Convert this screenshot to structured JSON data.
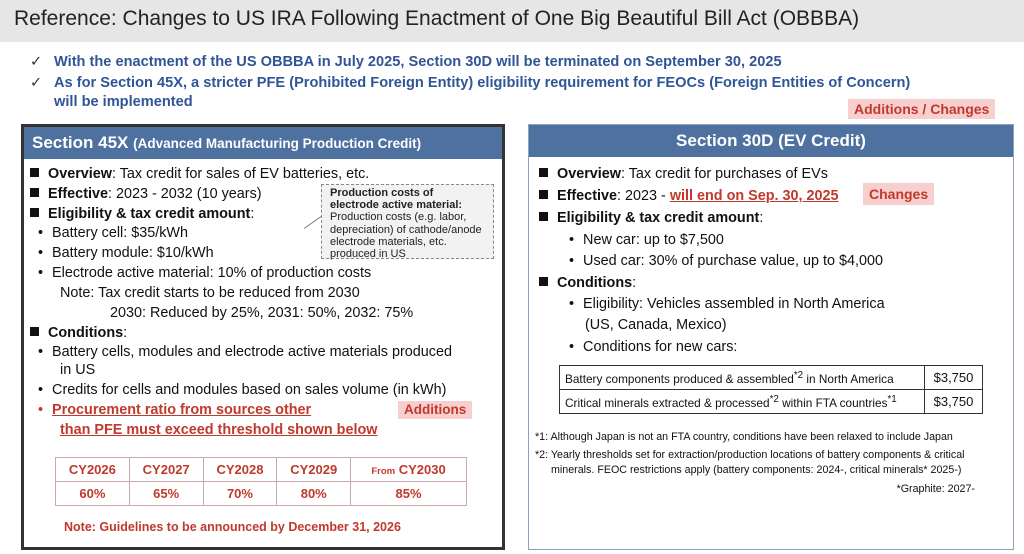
{
  "title": "Reference: Changes to US IRA Following Enactment of One Big Beautiful Bill Act (OBBBA)",
  "check_icon": "✓",
  "bullets": [
    "With the enactment of the US OBBBA in July 2025, Section 30D will be terminated on September 30, 2025",
    "As for Section 45X, a stricter PFE (Prohibited Foreign Entity) eligibility requirement for FEOCs (Foreign Entities of Concern)",
    "will be implemented"
  ],
  "additions_changes_tag": "Additions / Changes",
  "accent_colors": {
    "header": "#4f71a0",
    "bullet_text": "#2f5597",
    "red": "#c0392b",
    "tag_bg": "#f8cfcf"
  },
  "left": {
    "heading_main": "Section 45X",
    "heading_sub": "(Advanced Manufacturing Production Credit)",
    "overview_label": "Overview",
    "overview_text": ": Tax credit for sales of EV batteries, etc.",
    "effective_label": "Effective",
    "effective_text": ": 2023 - 2032 (10 years)",
    "eligibility_label": "Eligibility & tax credit amount",
    "eligibility_colon": ":",
    "items": [
      "Battery cell: $35/kWh",
      "Battery module: $10/kWh",
      "Electrode active material: 10% of production costs"
    ],
    "note1": "Note: Tax credit starts to be reduced from 2030",
    "note2": "2030: Reduced by 25%, 2031: 50%, 2032: 75%",
    "callout_title": "Production costs of electrode active material:",
    "callout_body": "Production costs (e.g. labor, depreciation) of cathode/anode electrode materials, etc. produced in US",
    "conditions_label": "Conditions",
    "conditions_colon": ":",
    "cond1a": "Battery cells, modules and electrode active materials produced",
    "cond1b": "in US",
    "cond2": "Credits for cells and modules based on sales volume (in kWh)",
    "cond3a": "Procurement ratio from sources other",
    "cond3b": "than PFE must exceed threshold shown below",
    "additions_tag": "Additions",
    "table_years": [
      "CY2026",
      "CY2027",
      "CY2028",
      "CY2029",
      "CY2030"
    ],
    "table_from_prefix": "From",
    "table_values": [
      "60%",
      "65%",
      "70%",
      "80%",
      "85%"
    ],
    "guideline_note": "Note: Guidelines to be announced by December 31, 2026"
  },
  "right": {
    "heading_main": "Section 30D",
    "heading_sub": "(EV Credit)",
    "overview_label": "Overview",
    "overview_text": ": Tax credit for purchases of EVs",
    "effective_label": "Effective",
    "effective_text": ": 2023 - ",
    "effective_end": "will end on Sep. 30, 2025",
    "changes_tag": "Changes",
    "eligibility_label": "Eligibility & tax credit amount",
    "eligibility_colon": ":",
    "new_car": "New car: up to $7,500",
    "used_car": "Used car: 30% of purchase value, up to $4,000",
    "conditions_label": "Conditions",
    "conditions_colon": ":",
    "elig1": "Eligibility: Vehicles assembled in North America",
    "elig2": "(US, Canada, Mexico)",
    "new_cars_cond": "Conditions for new cars:",
    "rows": [
      {
        "pre": "Battery components produced & assembled",
        "sup": "*2",
        "post": " in North America",
        "amount": "$3,750"
      },
      {
        "pre": "Critical minerals extracted & processed",
        "sup": "*2",
        "post": " within FTA countries",
        "sup2": "*1",
        "amount": "$3,750"
      }
    ],
    "fn1": "*1: Although Japan is not an FTA country, conditions have been relaxed to include Japan",
    "fn2a": "*2: Yearly thresholds set for extraction/production locations of battery components & critical",
    "fn2b": "minerals. FEOC restrictions apply (battery components: 2024-, critical minerals* 2025-)",
    "fn3": "*Graphite: 2027-"
  }
}
